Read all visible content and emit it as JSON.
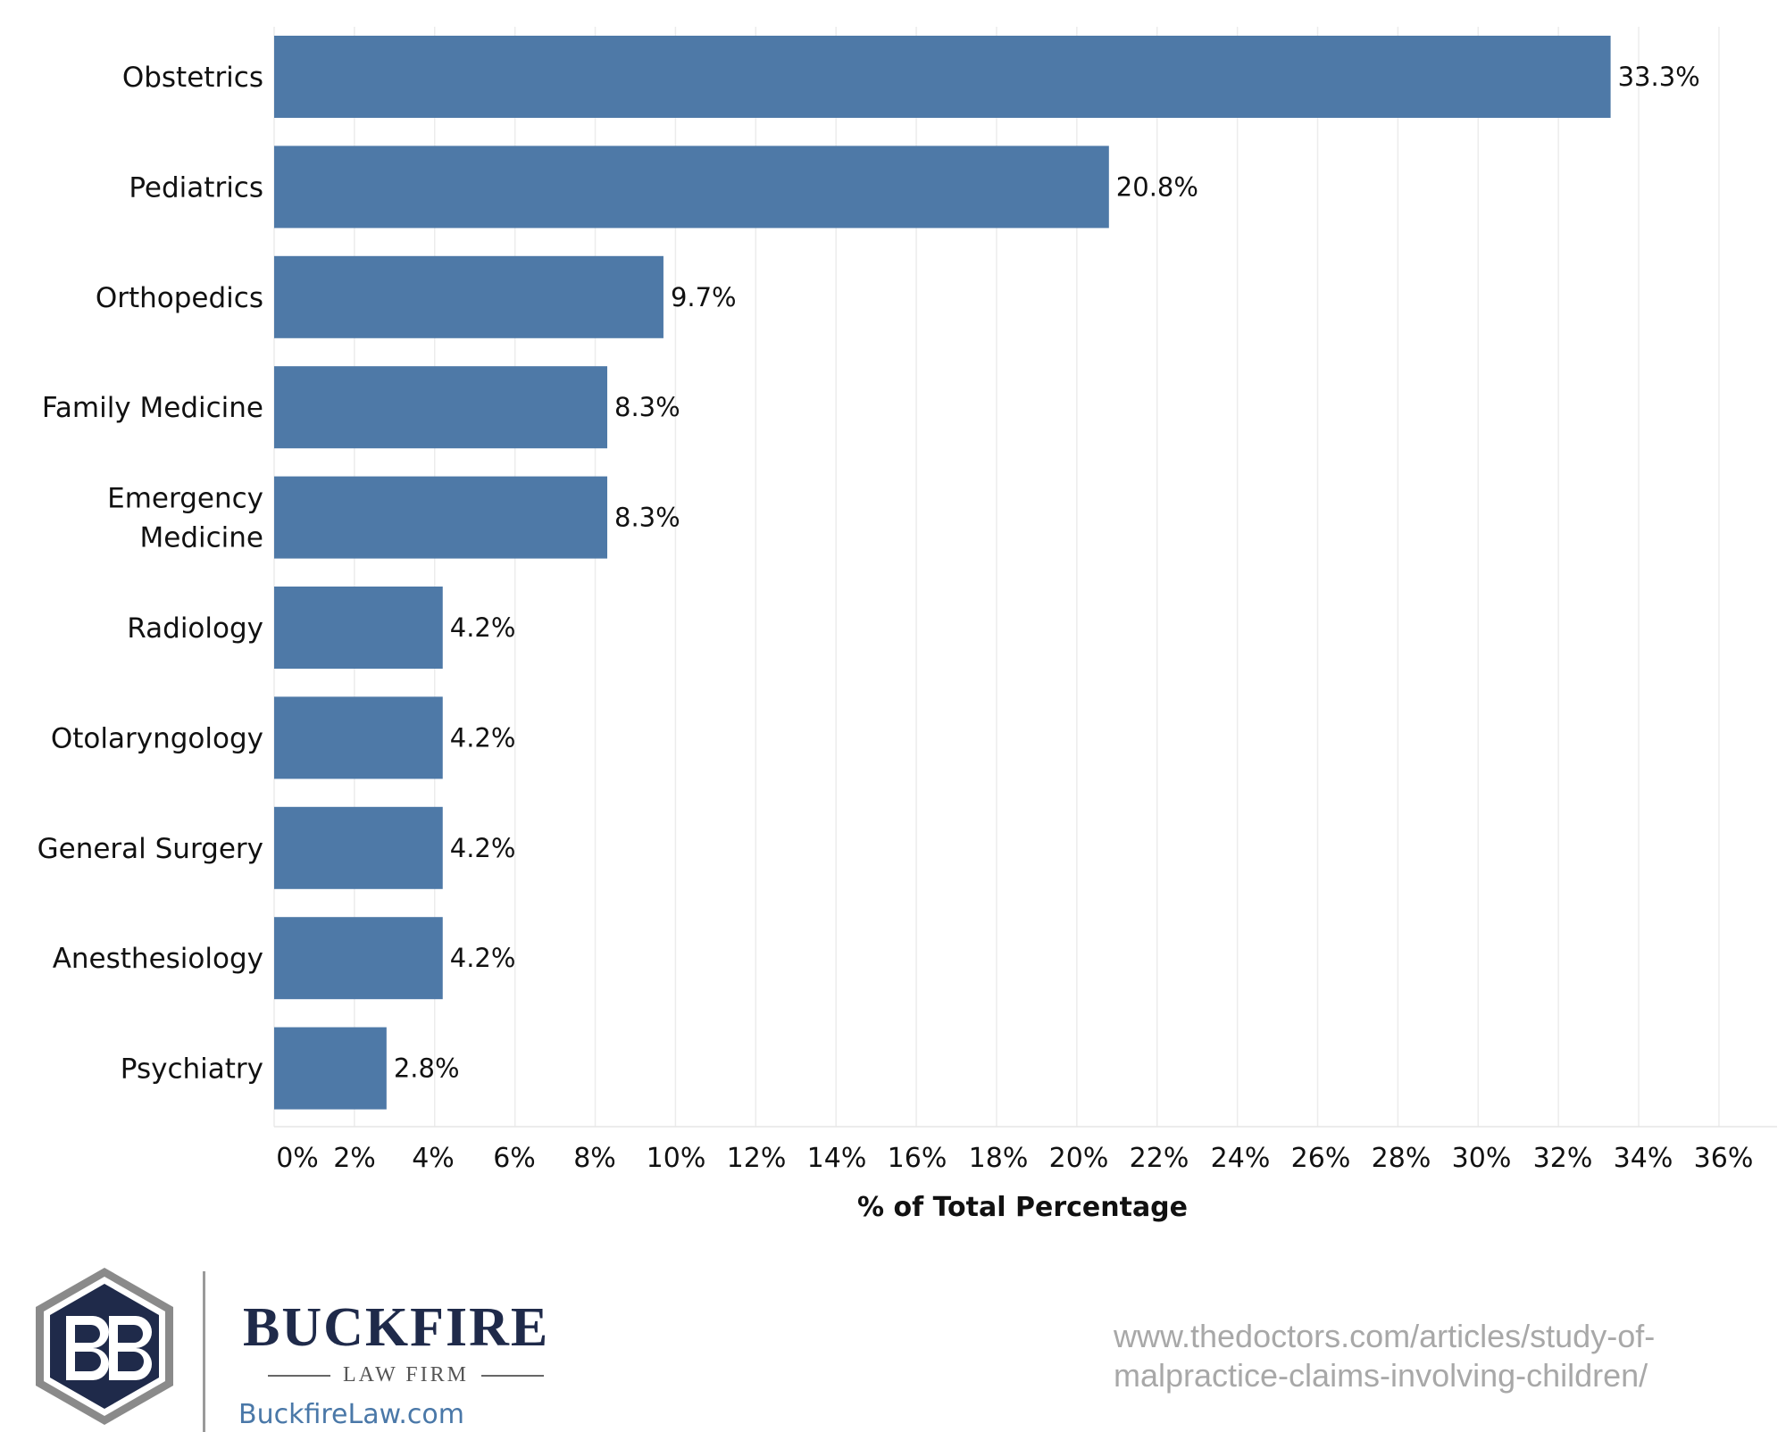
{
  "chart_data": {
    "type": "bar",
    "orientation": "horizontal",
    "categories": [
      "Obstetrics",
      "Pediatrics",
      "Orthopedics",
      "Family Medicine",
      "Emergency Medicine",
      "Radiology",
      "Otolaryngology",
      "General Surgery",
      "Anesthesiology",
      "Psychiatry"
    ],
    "category_lines": [
      [
        "Obstetrics"
      ],
      [
        "Pediatrics"
      ],
      [
        "Orthopedics"
      ],
      [
        "Family Medicine"
      ],
      [
        "Emergency",
        "Medicine"
      ],
      [
        "Radiology"
      ],
      [
        "Otolaryngology"
      ],
      [
        "General Surgery"
      ],
      [
        "Anesthesiology"
      ],
      [
        "Psychiatry"
      ]
    ],
    "values": [
      33.3,
      20.8,
      9.7,
      8.3,
      8.3,
      4.2,
      4.2,
      4.2,
      4.2,
      2.8
    ],
    "data_labels": [
      "33.3%",
      "20.8%",
      "9.7%",
      "8.3%",
      "8.3%",
      "4.2%",
      "4.2%",
      "4.2%",
      "4.2%",
      "2.8%"
    ],
    "xticks": [
      0,
      2,
      4,
      6,
      8,
      10,
      12,
      14,
      16,
      18,
      20,
      22,
      24,
      26,
      28,
      30,
      32,
      34,
      36
    ],
    "xtick_labels": [
      "0%",
      "2%",
      "4%",
      "6%",
      "8%",
      "10%",
      "12%",
      "14%",
      "16%",
      "18%",
      "20%",
      "22%",
      "24%",
      "26%",
      "28%",
      "30%",
      "32%",
      "34%",
      "36%"
    ],
    "xlim": [
      0,
      37
    ],
    "title": "",
    "xlabel": "% of Total Percentage",
    "ylabel": "",
    "bar_color": "#4e79a7",
    "grid": "vertical"
  },
  "footer": {
    "brand": "BUCKFIRE",
    "brand_sub": "LAW FIRM",
    "brand_url": "BuckfireLaw.com",
    "source_line1": "www.thedoctors.com/articles/study-of-",
    "source_line2": "malpractice-claims-involving-children/",
    "logo_colors": {
      "navy": "#1f2a4a",
      "gray": "#8a8a8a"
    }
  }
}
